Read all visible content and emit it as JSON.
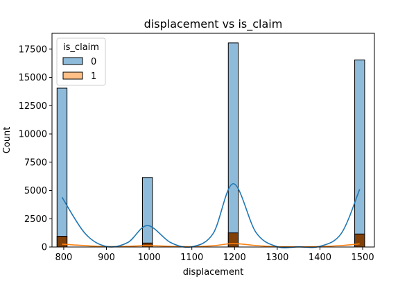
{
  "chart_data": {
    "type": "bar",
    "title": "displacement vs is_claim",
    "xlabel": "displacement",
    "ylabel": "Count",
    "xlim": [
      772.5,
      1527.5
    ],
    "ylim": [
      0,
      18900
    ],
    "xticks": [
      800,
      900,
      1000,
      1100,
      1200,
      1300,
      1400,
      1500
    ],
    "yticks": [
      0,
      2500,
      5000,
      7500,
      10000,
      12500,
      15000,
      17500
    ],
    "ytick_labels": [
      "0",
      "2500",
      "5000",
      "7500",
      "10000",
      "12500",
      "15000",
      "17500"
    ],
    "grid": false,
    "legend": {
      "title": "is_claim",
      "position": "top-left"
    },
    "bin_width": 23.3,
    "bins": [
      796,
      996,
      1197,
      1493
    ],
    "series": [
      {
        "name": "0",
        "color": "#1f77b4",
        "values": [
          14050,
          6150,
          18050,
          16550
        ]
      },
      {
        "name": "1",
        "color": "#ff7f0e",
        "values": [
          950,
          350,
          1250,
          1150
        ]
      }
    ],
    "kde": [
      {
        "name": "0",
        "color": "#1f77b4",
        "x": [
          796,
          850,
          900,
          950,
          996,
          1050,
          1100,
          1150,
          1197,
          1250,
          1300,
          1350,
          1400,
          1450,
          1493
        ],
        "y": [
          4400,
          1200,
          50,
          400,
          1900,
          400,
          20,
          1200,
          5600,
          1300,
          30,
          10,
          60,
          1200,
          5100
        ]
      },
      {
        "name": "1",
        "color": "#ff7f0e",
        "x": [
          796,
          850,
          900,
          950,
          996,
          1050,
          1100,
          1150,
          1197,
          1250,
          1300,
          1350,
          1400,
          1450,
          1493
        ],
        "y": [
          250,
          120,
          40,
          60,
          120,
          60,
          30,
          110,
          300,
          130,
          30,
          10,
          40,
          130,
          280
        ]
      }
    ]
  }
}
